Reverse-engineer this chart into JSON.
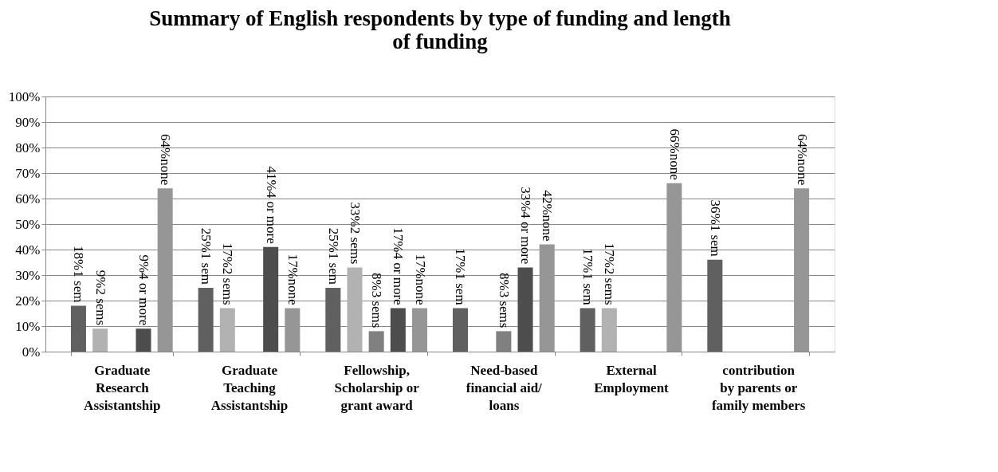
{
  "chart_data": {
    "type": "bar",
    "title": "Summary of English respondents by type of funding and length of funding",
    "categories": [
      "Graduate Research Assistantship",
      "Graduate Teaching Assistantship",
      "Fellowship, Scholarship or grant award",
      "Need-based financial aid/ loans",
      "External Employment",
      "contribution by parents or family members"
    ],
    "series": [
      {
        "color": "#606060",
        "values": [
          18,
          25,
          25,
          17,
          17,
          36
        ],
        "value_labels": [
          "18%1 sem",
          "25%1 sem",
          "25%1 sem",
          "17%1 sem",
          "17%1 sem",
          "36%1 sem"
        ]
      },
      {
        "color": "#b2b2b2",
        "values": [
          9,
          17,
          33,
          null,
          17,
          null
        ],
        "value_labels": [
          "9%2 sems",
          "17%2 sems",
          "33%2 sems",
          null,
          "17%2 sems",
          null
        ]
      },
      {
        "color": "#808080",
        "values": [
          null,
          null,
          8,
          8,
          null,
          null
        ],
        "value_labels": [
          null,
          null,
          "8%3 sems",
          "8%3 sems",
          null,
          null
        ]
      },
      {
        "color": "#4d4d4d",
        "values": [
          9,
          41,
          17,
          33,
          null,
          null
        ],
        "value_labels": [
          "9%4 or more",
          "41%4 or more",
          "17%4 or more",
          "33%4 or more",
          null,
          null
        ]
      },
      {
        "color": "#969696",
        "values": [
          64,
          17,
          17,
          42,
          66,
          64
        ],
        "value_labels": [
          "64%none",
          "17%none",
          "17%none",
          "42%none",
          "66%none",
          "64%none"
        ]
      }
    ],
    "ylim": [
      0,
      100
    ],
    "yticks": [
      {
        "value": 0,
        "label": "0%"
      },
      {
        "value": 10,
        "label": "10%"
      },
      {
        "value": 20,
        "label": "20%"
      },
      {
        "value": 30,
        "label": "30%"
      },
      {
        "value": 40,
        "label": "40%"
      },
      {
        "value": 50,
        "label": "50%"
      },
      {
        "value": 60,
        "label": "60%"
      },
      {
        "value": 70,
        "label": "70%"
      },
      {
        "value": 80,
        "label": "80%"
      },
      {
        "value": 90,
        "label": "90%"
      },
      {
        "value": 100,
        "label": "100%"
      }
    ],
    "grid": "y",
    "legend": false
  }
}
